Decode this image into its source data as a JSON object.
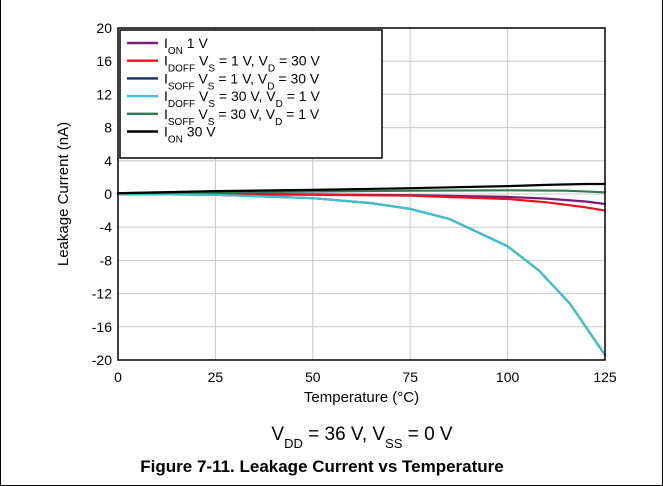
{
  "chart_data": {
    "type": "line",
    "title": "",
    "xlabel": "Temperature (°C)",
    "ylabel": "Leakage Current (nA)",
    "xlim": [
      0,
      125
    ],
    "ylim": [
      -20,
      20
    ],
    "xticks": [
      0,
      25,
      50,
      75,
      100,
      125
    ],
    "yticks": [
      20,
      16,
      12,
      8,
      4,
      0,
      -4,
      -8,
      -12,
      -16,
      -20
    ],
    "grid": true,
    "legend_position": "top-left",
    "series": [
      {
        "name": "I_ON 1 V",
        "label_parts": [
          [
            "I",
            ""
          ],
          [
            "ON",
            "sub"
          ],
          [
            " 1 V",
            ""
          ]
        ],
        "color": "#7b1a7b",
        "x": [
          0,
          25,
          50,
          75,
          100,
          110,
          120,
          125
        ],
        "y": [
          0.0,
          0.0,
          -0.05,
          -0.15,
          -0.35,
          -0.55,
          -0.9,
          -1.2
        ]
      },
      {
        "name": "I_DOFF V_S = 1 V, V_D = 30 V",
        "label_parts": [
          [
            "I",
            ""
          ],
          [
            "DOFF",
            "sub"
          ],
          [
            " V",
            ""
          ],
          [
            "S",
            "sub"
          ],
          [
            " = 1 V, V",
            ""
          ],
          [
            "D",
            "sub"
          ],
          [
            " = 30 V",
            ""
          ]
        ],
        "color": "#e8141c",
        "x": [
          0,
          25,
          50,
          75,
          100,
          110,
          120,
          125
        ],
        "y": [
          0.0,
          -0.05,
          -0.1,
          -0.2,
          -0.6,
          -1.0,
          -1.6,
          -2.0
        ]
      },
      {
        "name": "I_SOFF V_S = 1 V, V_D = 30 V",
        "label_parts": [
          [
            "I",
            ""
          ],
          [
            "SOFF",
            "sub"
          ],
          [
            " V",
            ""
          ],
          [
            "S",
            "sub"
          ],
          [
            " = 1 V, V",
            ""
          ],
          [
            "D",
            "sub"
          ],
          [
            " = 30 V",
            ""
          ]
        ],
        "color": "#0e2f6b",
        "x": [
          0,
          25,
          50,
          65,
          75,
          85,
          100,
          108,
          116,
          125
        ],
        "y": [
          0.0,
          -0.1,
          -0.5,
          -1.1,
          -1.8,
          -3.0,
          -6.3,
          -9.2,
          -13.2,
          -19.4
        ]
      },
      {
        "name": "I_DOFF V_S = 30 V, V_D = 1 V",
        "label_parts": [
          [
            "I",
            ""
          ],
          [
            "DOFF",
            "sub"
          ],
          [
            " V",
            ""
          ],
          [
            "S",
            "sub"
          ],
          [
            " = 30 V, V",
            ""
          ],
          [
            "D",
            "sub"
          ],
          [
            " = 1 V",
            ""
          ]
        ],
        "color": "#3cc3cf",
        "x": [
          0,
          25,
          50,
          65,
          75,
          85,
          100,
          108,
          116,
          125
        ],
        "y": [
          0.0,
          -0.1,
          -0.5,
          -1.1,
          -1.8,
          -3.0,
          -6.3,
          -9.2,
          -13.2,
          -19.4
        ]
      },
      {
        "name": "I_SOFF V_S = 30 V, V_D = 1 V",
        "label_parts": [
          [
            "I",
            ""
          ],
          [
            "SOFF",
            "sub"
          ],
          [
            " V",
            ""
          ],
          [
            "S",
            "sub"
          ],
          [
            " = 30 V, V",
            ""
          ],
          [
            "D",
            "sub"
          ],
          [
            " = 1 V",
            ""
          ]
        ],
        "color": "#2f7a4f",
        "x": [
          0,
          25,
          50,
          75,
          100,
          115,
          125
        ],
        "y": [
          0.1,
          0.2,
          0.3,
          0.4,
          0.45,
          0.4,
          0.2
        ]
      },
      {
        "name": "I_ON 30 V",
        "label_parts": [
          [
            "I",
            ""
          ],
          [
            "ON",
            "sub"
          ],
          [
            " 30 V",
            ""
          ]
        ],
        "color": "#000000",
        "x": [
          0,
          25,
          50,
          75,
          100,
          110,
          120,
          125
        ],
        "y": [
          0.1,
          0.35,
          0.5,
          0.7,
          0.95,
          1.1,
          1.2,
          1.2
        ]
      }
    ],
    "annotation_parts": [
      [
        "V",
        ""
      ],
      [
        "DD",
        "sub"
      ],
      [
        " = 36 V, V",
        ""
      ],
      [
        "SS",
        "sub"
      ],
      [
        " = 0 V",
        ""
      ]
    ],
    "caption": "Figure 7-11. Leakage Current vs Temperature"
  }
}
